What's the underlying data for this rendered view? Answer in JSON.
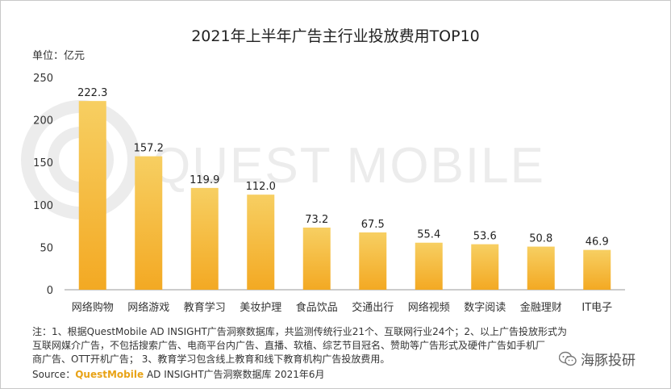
{
  "chart_data": {
    "type": "bar",
    "title": "2021年上半年广告主行业投放费用TOP10",
    "unit_label": "单位：亿元",
    "categories": [
      "网络购物",
      "网络游戏",
      "教育学习",
      "美妆护理",
      "食品饮品",
      "交通出行",
      "网络视频",
      "数字阅读",
      "金融理财",
      "IT电子"
    ],
    "values": [
      222.3,
      157.2,
      119.9,
      112.0,
      73.2,
      67.5,
      55.4,
      53.6,
      50.8,
      46.9
    ],
    "value_labels": [
      "222.3",
      "157.2",
      "119.9",
      "112.0",
      "73.2",
      "67.5",
      "55.4",
      "53.6",
      "50.8",
      "46.9"
    ],
    "ylim": [
      0,
      250
    ],
    "yticks": [
      0,
      50,
      100,
      150,
      200,
      250
    ],
    "grid": false,
    "bar_color_top": "#f7cf62",
    "bar_color_bottom": "#f3a923",
    "watermark": "QUEST MOBILE"
  },
  "notes": {
    "line1": "注：1、根据QuestMobile AD INSIGHT广告洞察数据库，共监测传统行业21个、互联网行业24个；2、以上广告投放形式为",
    "line2": "互联网媒介广告，不包括搜索广告、电商平台内广告、直播、软植、综艺节目冠名、赞助等广告形式及硬件广告如手机厂",
    "line3": "商广告、OTT开机广告； 3、教育学习包含线上教育和线下教育机构广告投放费用。"
  },
  "source": {
    "prefix": "Source：",
    "brand": "QuestMobile",
    "suffix": " AD INSIGHT广告洞察数据库 2021年6月"
  },
  "wechat_account": "海豚投研",
  "colors": {
    "axis": "#999999",
    "text": "#333333",
    "brand": "#e8a317"
  }
}
